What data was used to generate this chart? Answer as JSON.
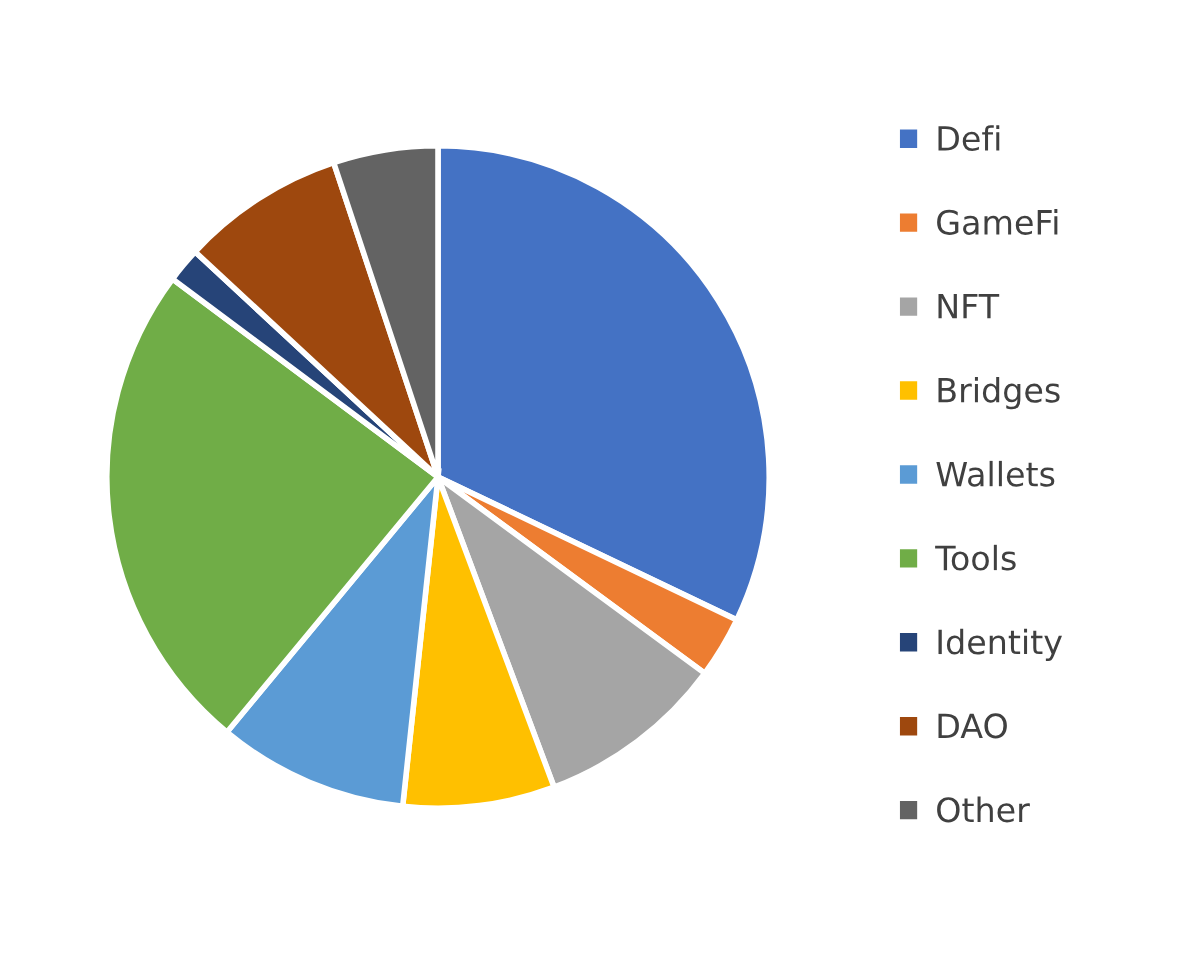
{
  "chart_data": {
    "type": "pie",
    "categories": [
      "Defi",
      "GameFi",
      "NFT",
      "Bridges",
      "Wallets",
      "Tools",
      "Identity",
      "DAO",
      "Other"
    ],
    "values": [
      32.1,
      3.0,
      9.2,
      7.4,
      9.3,
      24.2,
      1.7,
      8.0,
      5.1
    ],
    "colors": [
      "#4472c4",
      "#ed7d31",
      "#a5a5a5",
      "#ffc000",
      "#5b9bd5",
      "#70ad47",
      "#264478",
      "#9e480e",
      "#636363"
    ],
    "legend": "right"
  }
}
